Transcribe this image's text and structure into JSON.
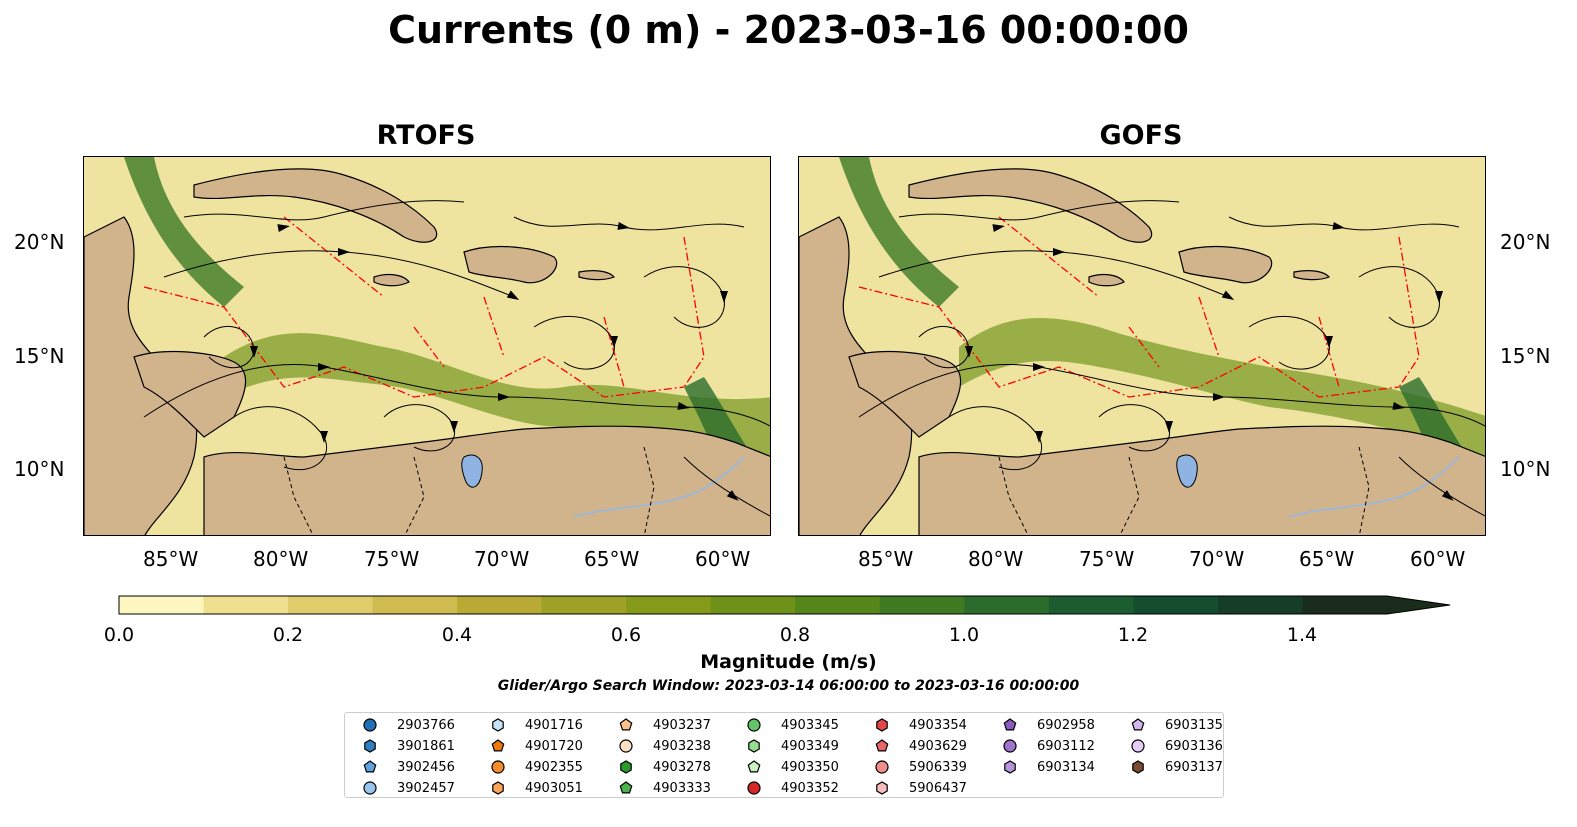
{
  "title": "Currents (0 m) - 2023-03-16 00:00:00",
  "panels": [
    {
      "title": "RTOFS"
    },
    {
      "title": "GOFS"
    }
  ],
  "axes": {
    "lat_labels": [
      "20°N",
      "15°N",
      "10°N"
    ],
    "lon_labels": [
      "85°W",
      "80°W",
      "75°W",
      "70°W",
      "65°W",
      "60°W"
    ]
  },
  "colorbar": {
    "label": "Magnitude (m/s)",
    "ticks": [
      "0.0",
      "0.2",
      "0.4",
      "0.6",
      "0.8",
      "1.0",
      "1.2",
      "1.4"
    ],
    "range": [
      0.0,
      1.5
    ],
    "colors": [
      "#fdf6c0",
      "#efe08f",
      "#e0cc6a",
      "#cfbb4f",
      "#b8aa35",
      "#9ea125",
      "#869a1a",
      "#6e9118",
      "#548619",
      "#3f7a22",
      "#2b6c2c",
      "#1c5c31",
      "#144d2e",
      "#153d27",
      "#1a2d1c"
    ],
    "extend": "max"
  },
  "search_window": "Glider/Argo Search Window: 2023-03-14 06:00:00 to 2023-03-16 00:00:00",
  "legend": {
    "columns": [
      [
        {
          "id": "2903766",
          "marker": "circle",
          "color": "#1f6fb4"
        },
        {
          "id": "3901861",
          "marker": "hexagon",
          "color": "#2f7fc1"
        },
        {
          "id": "3902456",
          "marker": "pentagon",
          "color": "#5fa2dd"
        },
        {
          "id": "3902457",
          "marker": "circle",
          "color": "#9ac6ec"
        }
      ],
      [
        {
          "id": "4901716",
          "marker": "hexagon",
          "color": "#c6e2f7"
        },
        {
          "id": "4901720",
          "marker": "pentagon",
          "color": "#f07a10"
        },
        {
          "id": "4902355",
          "marker": "circle",
          "color": "#f58b2a"
        },
        {
          "id": "4903051",
          "marker": "hexagon",
          "color": "#fba55a"
        }
      ],
      [
        {
          "id": "4903237",
          "marker": "pentagon",
          "color": "#fcc08a"
        },
        {
          "id": "4903238",
          "marker": "circle",
          "color": "#fde0c2"
        },
        {
          "id": "4903278",
          "marker": "hexagon",
          "color": "#2a9a2a"
        },
        {
          "id": "4903333",
          "marker": "pentagon",
          "color": "#4bb54b"
        }
      ],
      [
        {
          "id": "4903345",
          "marker": "circle",
          "color": "#66c266"
        },
        {
          "id": "4903349",
          "marker": "hexagon",
          "color": "#98dd8f"
        },
        {
          "id": "4903350",
          "marker": "pentagon",
          "color": "#c8f2c0"
        },
        {
          "id": "4903352",
          "marker": "circle",
          "color": "#d62728"
        }
      ],
      [
        {
          "id": "4903354",
          "marker": "hexagon",
          "color": "#e0474a"
        },
        {
          "id": "4903629",
          "marker": "pentagon",
          "color": "#e8686a"
        },
        {
          "id": "5906339",
          "marker": "circle",
          "color": "#f08d8d"
        },
        {
          "id": "5906437",
          "marker": "hexagon",
          "color": "#f7bcbc"
        }
      ],
      [
        {
          "id": "6902958",
          "marker": "pentagon",
          "color": "#8a5cbf"
        },
        {
          "id": "6903112",
          "marker": "circle",
          "color": "#9d73cc"
        },
        {
          "id": "6903134",
          "marker": "hexagon",
          "color": "#b596dc"
        }
      ],
      [
        {
          "id": "6903135",
          "marker": "pentagon",
          "color": "#d3b6ec"
        },
        {
          "id": "6903136",
          "marker": "circle",
          "color": "#e6cdf7"
        },
        {
          "id": "6903137",
          "marker": "hexagon",
          "color": "#7b4a35"
        }
      ]
    ]
  },
  "style": {
    "land_color": "#d2b48c",
    "lake_color": "#8fb4e3",
    "eez_color": "#ff0000"
  }
}
